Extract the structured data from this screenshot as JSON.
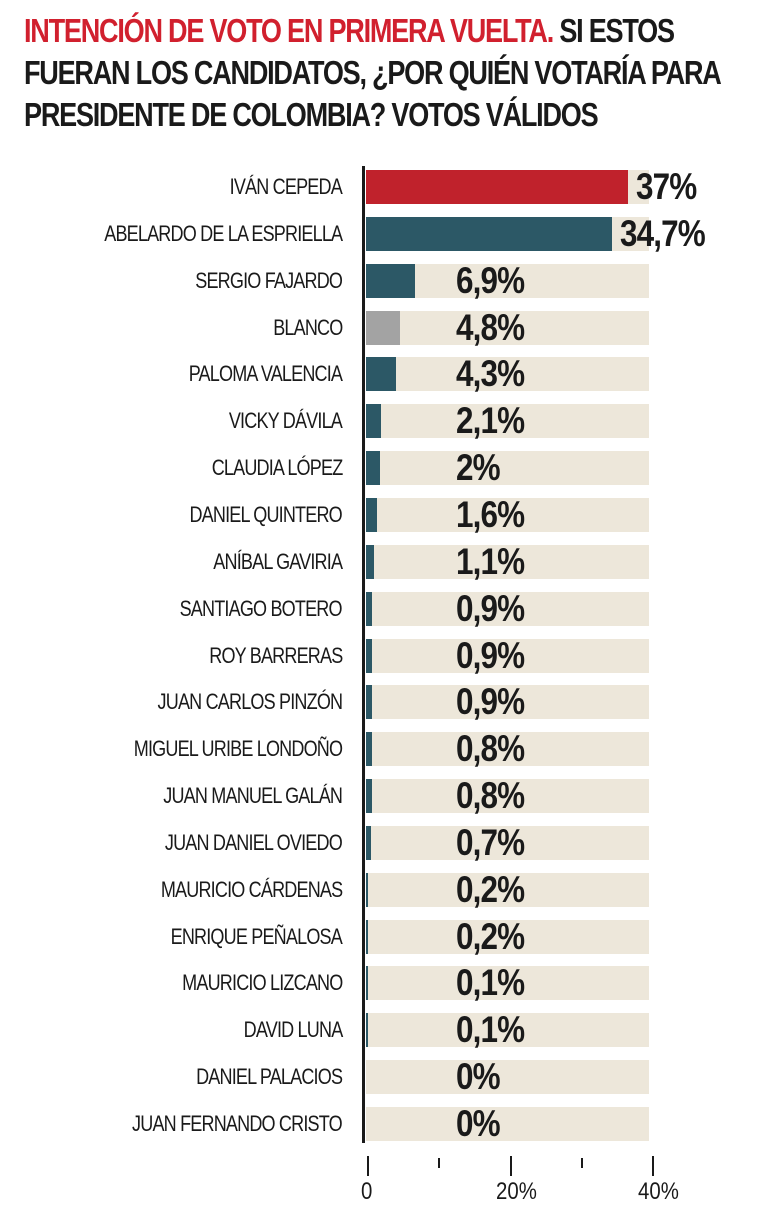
{
  "title": {
    "accent": "INTENCIÓN DE VOTO EN PRIMERA VUELTA.",
    "rest": " SI ESTOS FUERAN LOS CANDIDATOS, ¿POR QUIÉN VOTARÍA PARA PRESIDENTE DE COLOMBIA? VOTOS VÁLIDOS"
  },
  "colors": {
    "title_accent": "#d1202e",
    "leader_bar": "#c0222c",
    "candidate_bar": "#2c5866",
    "blank_bar": "#a3a3a3",
    "track": "#ede7da"
  },
  "axis": {
    "ticks": [
      {
        "value": 0,
        "label": "0",
        "major": true
      },
      {
        "value": 10,
        "label": "",
        "major": false
      },
      {
        "value": 20,
        "label": "20%",
        "major": true
      },
      {
        "value": 30,
        "label": "",
        "major": false
      },
      {
        "value": 40,
        "label": "40%",
        "major": true
      }
    ]
  },
  "rows": [
    {
      "label": "IVÁN CEPEDA",
      "value_text": "37%",
      "value": 37,
      "color": "red"
    },
    {
      "label": "ABELARDO DE LA ESPRIELLA",
      "value_text": "34,7%",
      "value": 34.7,
      "color": "teal"
    },
    {
      "label": "SERGIO FAJARDO",
      "value_text": "6,9%",
      "value": 6.9,
      "color": "teal"
    },
    {
      "label": "BLANCO",
      "value_text": "4,8%",
      "value": 4.8,
      "color": "gray"
    },
    {
      "label": "PALOMA VALENCIA",
      "value_text": "4,3%",
      "value": 4.3,
      "color": "teal"
    },
    {
      "label": "VICKY DÁVILA",
      "value_text": "2,1%",
      "value": 2.1,
      "color": "teal"
    },
    {
      "label": "CLAUDIA LÓPEZ",
      "value_text": "2%",
      "value": 2,
      "color": "teal"
    },
    {
      "label": "DANIEL QUINTERO",
      "value_text": "1,6%",
      "value": 1.6,
      "color": "teal"
    },
    {
      "label": "ANÍBAL GAVIRIA",
      "value_text": "1,1%",
      "value": 1.1,
      "color": "teal"
    },
    {
      "label": "SANTIAGO BOTERO",
      "value_text": "0,9%",
      "value": 0.9,
      "color": "teal"
    },
    {
      "label": "ROY BARRERAS",
      "value_text": "0,9%",
      "value": 0.9,
      "color": "teal"
    },
    {
      "label": "JUAN CARLOS PINZÓN",
      "value_text": "0,9%",
      "value": 0.9,
      "color": "teal"
    },
    {
      "label": "MIGUEL URIBE LONDOÑO",
      "value_text": "0,8%",
      "value": 0.8,
      "color": "teal"
    },
    {
      "label": "JUAN MANUEL GALÁN",
      "value_text": "0,8%",
      "value": 0.8,
      "color": "teal"
    },
    {
      "label": "JUAN DANIEL OVIEDO",
      "value_text": "0,7%",
      "value": 0.7,
      "color": "teal"
    },
    {
      "label": "MAURICIO CÁRDENAS",
      "value_text": "0,2%",
      "value": 0.2,
      "color": "teal"
    },
    {
      "label": "ENRIQUE PEÑALOSA",
      "value_text": "0,2%",
      "value": 0.2,
      "color": "teal"
    },
    {
      "label": "MAURICIO LIZCANO",
      "value_text": "0,1%",
      "value": 0.1,
      "color": "teal"
    },
    {
      "label": "DAVID LUNA",
      "value_text": "0,1%",
      "value": 0.1,
      "color": "teal"
    },
    {
      "label": "DANIEL PALACIOS",
      "value_text": "0%",
      "value": 0,
      "color": "teal"
    },
    {
      "label": "JUAN FERNANDO CRISTO",
      "value_text": "0%",
      "value": 0,
      "color": "teal"
    }
  ],
  "chart_data": {
    "type": "bar",
    "orientation": "horizontal",
    "title": "INTENCIÓN DE VOTO EN PRIMERA VUELTA. SI ESTOS FUERAN LOS CANDIDATOS, ¿POR QUIÉN VOTARÍA PARA PRESIDENTE DE COLOMBIA? VOTOS VÁLIDOS",
    "categories": [
      "IVÁN CEPEDA",
      "ABELARDO DE LA ESPRIELLA",
      "SERGIO FAJARDO",
      "BLANCO",
      "PALOMA VALENCIA",
      "VICKY DÁVILA",
      "CLAUDIA LÓPEZ",
      "DANIEL QUINTERO",
      "ANÍBAL GAVIRIA",
      "SANTIAGO BOTERO",
      "ROY BARRERAS",
      "JUAN CARLOS PINZÓN",
      "MIGUEL URIBE LONDOÑO",
      "JUAN MANUEL GALÁN",
      "JUAN DANIEL OVIEDO",
      "MAURICIO CÁRDENAS",
      "ENRIQUE PEÑALOSA",
      "MAURICIO LIZCANO",
      "DAVID LUNA",
      "DANIEL PALACIOS",
      "JUAN FERNANDO CRISTO"
    ],
    "values": [
      37,
      34.7,
      6.9,
      4.8,
      4.3,
      2.1,
      2,
      1.6,
      1.1,
      0.9,
      0.9,
      0.9,
      0.8,
      0.8,
      0.7,
      0.2,
      0.2,
      0.1,
      0.1,
      0,
      0
    ],
    "value_labels": [
      "37%",
      "34,7%",
      "6,9%",
      "4,8%",
      "4,3%",
      "2,1%",
      "2%",
      "1,6%",
      "1,1%",
      "0,9%",
      "0,9%",
      "0,9%",
      "0,8%",
      "0,8%",
      "0,7%",
      "0,2%",
      "0,2%",
      "0,1%",
      "0,1%",
      "0%",
      "0%"
    ],
    "xlabel": "",
    "ylabel": "",
    "xlim": [
      0,
      40
    ],
    "x_ticks": [
      "0",
      "20%",
      "40%"
    ],
    "grid": false,
    "legend": null
  }
}
